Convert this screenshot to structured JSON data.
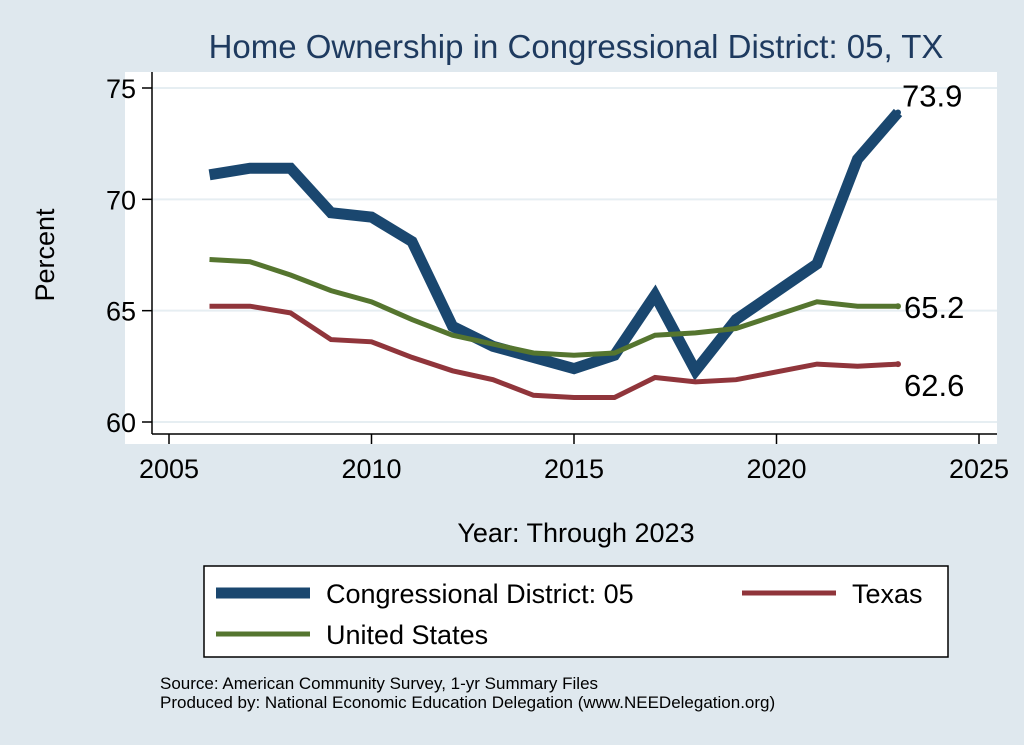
{
  "chart_data": {
    "type": "line",
    "title": "Home Ownership in Congressional District:  05, TX",
    "xlabel": "Year: Through 2023",
    "ylabel": "Percent",
    "xlim": [
      2005,
      2025
    ],
    "ylim": [
      60,
      75
    ],
    "x_ticks": [
      "2005",
      "2010",
      "2015",
      "2020",
      "2025"
    ],
    "y_ticks": [
      "60",
      "65",
      "70",
      "75"
    ],
    "grid": true,
    "legend_position": "bottom",
    "series": [
      {
        "name": "Congressional District:  05",
        "color": "#1a476f",
        "x": [
          2006,
          2007,
          2008,
          2009,
          2010,
          2011,
          2012,
          2013,
          2014,
          2015,
          2016,
          2017,
          2018,
          2019,
          2021,
          2022,
          2023
        ],
        "y": [
          71.1,
          71.4,
          71.4,
          69.4,
          69.2,
          68.1,
          64.3,
          63.4,
          62.9,
          62.4,
          63.0,
          65.7,
          62.3,
          64.6,
          67.1,
          71.8,
          73.9
        ],
        "end_label": "73.9"
      },
      {
        "name": "Texas",
        "color": "#90353b",
        "x": [
          2006,
          2007,
          2008,
          2009,
          2010,
          2011,
          2012,
          2013,
          2014,
          2015,
          2016,
          2017,
          2018,
          2019,
          2021,
          2022,
          2023
        ],
        "y": [
          65.2,
          65.2,
          64.9,
          63.7,
          63.6,
          62.9,
          62.3,
          61.9,
          61.2,
          61.1,
          61.1,
          62.0,
          61.8,
          61.9,
          62.6,
          62.5,
          62.6
        ],
        "end_label": "62.6"
      },
      {
        "name": "United States",
        "color": "#55752f",
        "x": [
          2006,
          2007,
          2008,
          2009,
          2010,
          2011,
          2012,
          2013,
          2014,
          2015,
          2016,
          2017,
          2018,
          2019,
          2021,
          2022,
          2023
        ],
        "y": [
          67.3,
          67.2,
          66.6,
          65.9,
          65.4,
          64.6,
          63.9,
          63.5,
          63.1,
          63.0,
          63.1,
          63.9,
          64.0,
          64.2,
          65.4,
          65.2,
          65.2
        ],
        "end_label": "65.2"
      }
    ],
    "legend_order": [
      "Congressional District:  05",
      "Texas",
      "United States"
    ]
  },
  "footer": {
    "source": "Source: American Community Survey, 1-yr Summary Files",
    "produced_by": "Produced by: National Economic Education Delegation (www.NEEDelegation.org)"
  },
  "colors": {
    "background": "#dfe8ee",
    "plot_background": "#ffffff",
    "title": "#1e3a5f",
    "grid": "#e6eef2"
  }
}
